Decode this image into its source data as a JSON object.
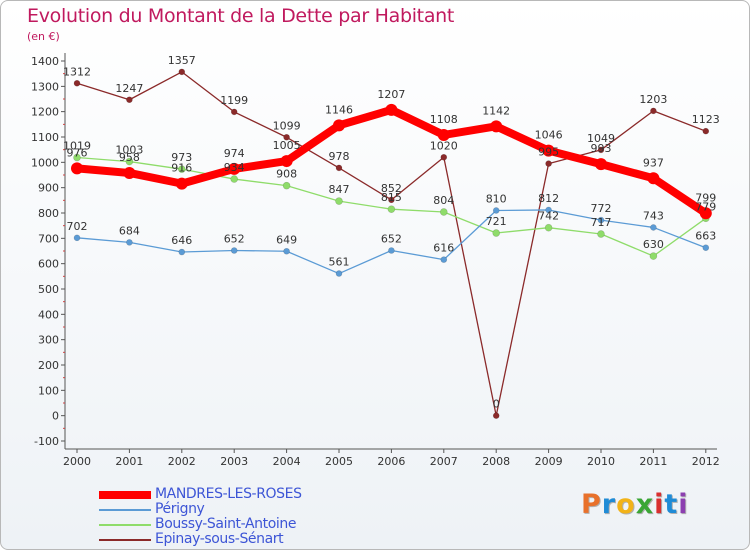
{
  "header": {
    "title": "Evolution du Montant de la Dette par Habitant",
    "subtitle": "(en €)"
  },
  "logo": {
    "text": "Proxiti",
    "letter_colors": [
      "#e8712b",
      "#1f8bd6",
      "#f2b318",
      "#3aa635",
      "#d92f2f",
      "#1f8bd6",
      "#8c3fb0"
    ]
  },
  "chart_data": {
    "type": "line",
    "title": "Evolution du Montant de la Dette par Habitant",
    "subtitle": "(en €)",
    "xlabel": "",
    "ylabel": "",
    "x": [
      "2000",
      "2001",
      "2002",
      "2003",
      "2004",
      "2005",
      "2006",
      "2007",
      "2008",
      "2009",
      "2010",
      "2011",
      "2012"
    ],
    "ylim": [
      -100,
      1400
    ],
    "yticks": [
      -100,
      0,
      100,
      200,
      300,
      400,
      500,
      600,
      700,
      800,
      900,
      1000,
      1100,
      1200,
      1300,
      1400
    ],
    "grid": false,
    "legend_position": "bottom-left",
    "series": [
      {
        "name": "MANDRES-LES-ROSES",
        "color": "#ff0000",
        "values": [
          976,
          958,
          916,
          974,
          1005,
          1146,
          1207,
          1108,
          1142,
          1046,
          993,
          937,
          799
        ],
        "labels": [
          "976",
          "958",
          "916",
          "974",
          "1005",
          "1146",
          "1207",
          "1108",
          "1142",
          "1046",
          "993",
          "937",
          "799"
        ]
      },
      {
        "name": "Périgny",
        "color": "#5b9bd5",
        "values": [
          702,
          684,
          646,
          652,
          649,
          561,
          652,
          616,
          810,
          812,
          772,
          743,
          663
        ],
        "labels": [
          "702",
          "684",
          "646",
          "652",
          "649",
          "561",
          "652",
          "616",
          "810",
          "812",
          "772",
          "743",
          "663"
        ]
      },
      {
        "name": "Boussy-Saint-Antoine",
        "color": "#8fdc6a",
        "values": [
          1019,
          1003,
          973,
          934,
          908,
          847,
          815,
          804,
          721,
          742,
          717,
          630,
          779
        ],
        "labels": [
          "1019",
          "1003",
          "973",
          "934",
          "908",
          "847",
          "815",
          "804",
          "721",
          "742",
          "717",
          "630",
          "779"
        ]
      },
      {
        "name": "Epinay-sous-Sénart",
        "color": "#8b2a2a",
        "values": [
          1312,
          1247,
          1357,
          1199,
          1099,
          978,
          852,
          1020,
          0,
          995,
          1049,
          1203,
          1123
        ],
        "labels": [
          "1312",
          "1247",
          "1357",
          "1199",
          "1099",
          "978",
          "852",
          "1020",
          "0",
          "995",
          "1049",
          "1203",
          "1123"
        ]
      }
    ]
  }
}
